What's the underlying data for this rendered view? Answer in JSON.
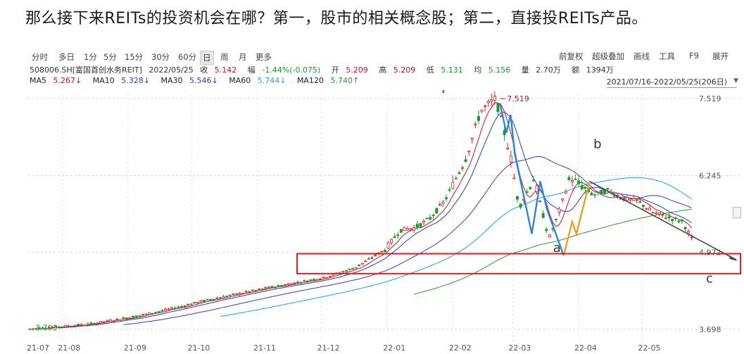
{
  "headline": "那么接下来REITs的投资机会在哪？第一，股市的相关概念股；第二，直接投REITs产品。",
  "toolbar": {
    "periods": [
      "分时",
      "多日",
      "1分",
      "5分",
      "15分",
      "30分",
      "60分",
      "日",
      "周",
      "月",
      "更多"
    ],
    "active_period": "日",
    "right": [
      "前复权",
      "超级叠加",
      "画线",
      "工具",
      "F9",
      "展开"
    ]
  },
  "quote": {
    "code_name": "508006.SH[富国首创水务REIT]",
    "date": "2022/05/25",
    "close_label": "收",
    "close": "5.142",
    "change_label": "幅",
    "change": "-1.44%(-0.075)",
    "open_label": "开",
    "open": "5.209",
    "high_label": "高",
    "high": "5.209",
    "low_label": "低",
    "low": "5.131",
    "avg_label": "均",
    "avg": "5.156",
    "volume_label": "量",
    "volume": "2.70万",
    "amount_label": "额",
    "amount": "1394万"
  },
  "ma": [
    {
      "label": "MA5",
      "value": "5.267↓",
      "color": "#c8102e"
    },
    {
      "label": "MA10",
      "value": "5.328↓",
      "color": "#1f3fbf"
    },
    {
      "label": "MA30",
      "value": "5.546↓",
      "color": "#1f3fbf"
    },
    {
      "label": "MA60",
      "value": "5.744↓",
      "color": "#1aa8c8"
    },
    {
      "label": "MA120",
      "value": "5.740↑",
      "color": "#2a9a2a"
    }
  ],
  "range": "2021/07/16-2022/05/25(206日)",
  "chart_data": {
    "type": "candlestick",
    "y_ticks": [
      "7.519",
      "6.245",
      "4.972",
      "3.698"
    ],
    "ylim": [
      3.698,
      7.519
    ],
    "x_ticks": [
      "21-07",
      "21-08",
      "21-09",
      "21-10",
      "21-11",
      "21-12",
      "22-01",
      "22-02",
      "22-03",
      "22-04",
      "22-05"
    ],
    "annotations": {
      "high_label": "7.519",
      "low_label": "3.703",
      "wave_a": "a",
      "wave_b": "b",
      "wave_c": "c"
    },
    "colors": {
      "up": "#d81e1e",
      "down": "#1a9a2a",
      "ma5": "#c8102e",
      "ma10": "#1f3fbf",
      "ma60": "#1aa8c8",
      "ma120": "#2a9a2a",
      "wave_blue": "#2b87d8",
      "wave_orange": "#f0a020",
      "trend": "#444444",
      "box": "#e02020"
    },
    "price_series": [
      [
        "2021-07-16",
        3.703
      ],
      [
        "2021-07-30",
        3.74
      ],
      [
        "2021-08-13",
        3.78
      ],
      [
        "2021-08-27",
        3.86
      ],
      [
        "2021-09-10",
        3.95
      ],
      [
        "2021-09-24",
        4.06
      ],
      [
        "2021-10-08",
        4.18
      ],
      [
        "2021-10-22",
        4.28
      ],
      [
        "2021-11-05",
        4.38
      ],
      [
        "2021-11-19",
        4.47
      ],
      [
        "2021-12-03",
        4.56
      ],
      [
        "2021-12-17",
        4.72
      ],
      [
        "2021-12-31",
        5.02
      ],
      [
        "2022-01-07",
        5.34
      ],
      [
        "2022-01-14",
        5.38
      ],
      [
        "2022-01-21",
        5.53
      ],
      [
        "2022-01-28",
        5.82
      ],
      [
        "2022-02-07",
        6.54
      ],
      [
        "2022-02-14",
        7.32
      ],
      [
        "2022-02-21",
        7.519
      ],
      [
        "2022-02-28",
        6.55
      ],
      [
        "2022-03-04",
        5.71
      ],
      [
        "2022-03-11",
        6.2
      ],
      [
        "2022-03-18",
        5.2
      ],
      [
        "2022-03-22",
        5.55
      ],
      [
        "2022-03-28",
        6.22
      ],
      [
        "2022-04-01",
        6.11
      ],
      [
        "2022-04-08",
        5.92
      ],
      [
        "2022-04-15",
        6.0
      ],
      [
        "2022-04-22",
        5.86
      ],
      [
        "2022-04-29",
        5.82
      ],
      [
        "2022-05-06",
        5.63
      ],
      [
        "2022-05-13",
        5.55
      ],
      [
        "2022-05-20",
        5.48
      ],
      [
        "2022-05-25",
        5.142
      ]
    ]
  }
}
